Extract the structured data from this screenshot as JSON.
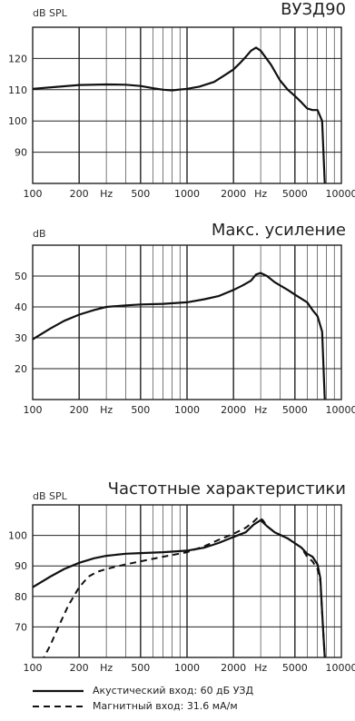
{
  "chart_data": [
    {
      "type": "line",
      "title": "ВУЗД90",
      "ylabel": "dB SPL",
      "x_scale": "log",
      "xlim": [
        100,
        10000
      ],
      "ylim": [
        80,
        130
      ],
      "yticks": [
        90,
        100,
        110,
        120
      ],
      "x_tick_labels": [
        "100",
        "200",
        "Hz",
        "500",
        "1000",
        "2000",
        "Hz",
        "5000",
        "10000"
      ],
      "grid": true,
      "series": [
        {
          "style": "solid",
          "x": [
            100,
            150,
            200,
            300,
            400,
            500,
            600,
            700,
            800,
            1000,
            1200,
            1500,
            1800,
            2000,
            2200,
            2400,
            2600,
            2800,
            3000,
            3500,
            4000,
            4500,
            5000,
            5500,
            6000,
            6500,
            7000,
            7500,
            7800
          ],
          "y": [
            110.3,
            111,
            111.5,
            111.7,
            111.6,
            111.2,
            110.5,
            110,
            109.8,
            110.3,
            111,
            112.5,
            115,
            116.5,
            118.5,
            120.5,
            122.5,
            123.5,
            122.5,
            118,
            113,
            110,
            108,
            106,
            104,
            103.5,
            103.5,
            100,
            80
          ]
        }
      ]
    },
    {
      "type": "line",
      "title": "Макс. усиление",
      "ylabel": "dB",
      "x_scale": "log",
      "xlim": [
        100,
        10000
      ],
      "ylim": [
        10,
        60
      ],
      "yticks": [
        20,
        30,
        40,
        50
      ],
      "x_tick_labels": [
        "100",
        "200",
        "Hz",
        "500",
        "1000",
        "2000",
        "Hz",
        "5000",
        "10000"
      ],
      "grid": true,
      "series": [
        {
          "style": "solid",
          "x": [
            100,
            130,
            160,
            200,
            250,
            300,
            400,
            500,
            700,
            1000,
            1300,
            1600,
            2000,
            2300,
            2600,
            2800,
            3000,
            3300,
            3700,
            4500,
            5000,
            6000,
            6500,
            7000,
            7500,
            7800
          ],
          "y": [
            29.5,
            33,
            35.5,
            37.5,
            39,
            40,
            40.5,
            40.8,
            41,
            41.5,
            42.5,
            43.5,
            45.5,
            47,
            48.5,
            50.5,
            51,
            50,
            48,
            45.5,
            44,
            41.5,
            39,
            37,
            32,
            10
          ]
        }
      ]
    },
    {
      "type": "line",
      "title": "Частотные характеристики",
      "ylabel": "dB SPL",
      "x_scale": "log",
      "xlim": [
        100,
        10000
      ],
      "ylim": [
        60,
        110
      ],
      "yticks": [
        70,
        80,
        90,
        100
      ],
      "x_tick_labels": [
        "100",
        "200",
        "Hz",
        "500",
        "1000",
        "2000",
        "Hz",
        "5000",
        "10000"
      ],
      "grid": true,
      "legend_position": "bottom-left",
      "series": [
        {
          "name": "Акустический вход: 60 дБ УЗД",
          "style": "solid",
          "x": [
            100,
            130,
            160,
            200,
            250,
            300,
            400,
            500,
            700,
            1000,
            1300,
            1600,
            2000,
            2400,
            2700,
            3000,
            3300,
            3700,
            4500,
            5500,
            6000,
            6500,
            7000,
            7300,
            7600,
            7800
          ],
          "y": [
            83,
            86.5,
            89,
            91,
            92.5,
            93.3,
            94,
            94.2,
            94.5,
            95,
            96,
            97.5,
            99.5,
            101,
            103.5,
            105,
            103,
            101,
            99,
            96,
            94,
            93,
            90.5,
            86,
            70,
            60
          ]
        },
        {
          "name": "Магнитный вход: 31.6 мА/м",
          "style": "dashed",
          "x": [
            100,
            110,
            130,
            150,
            170,
            200,
            230,
            260,
            300,
            400,
            500,
            700,
            1000,
            1300,
            1600,
            2000,
            2400,
            2700,
            2900,
            3100,
            3300,
            3700,
            4500,
            5500,
            6000,
            6500,
            7000,
            7300,
            7600,
            7800
          ],
          "y": [
            52,
            57,
            64,
            71,
            77,
            83,
            86.5,
            88,
            89,
            90.5,
            91.5,
            93,
            94.5,
            96.5,
            98.5,
            100.5,
            102.5,
            104.5,
            106,
            105,
            103,
            101,
            99,
            96,
            93,
            91.5,
            89,
            85,
            70,
            60
          ]
        }
      ]
    }
  ]
}
